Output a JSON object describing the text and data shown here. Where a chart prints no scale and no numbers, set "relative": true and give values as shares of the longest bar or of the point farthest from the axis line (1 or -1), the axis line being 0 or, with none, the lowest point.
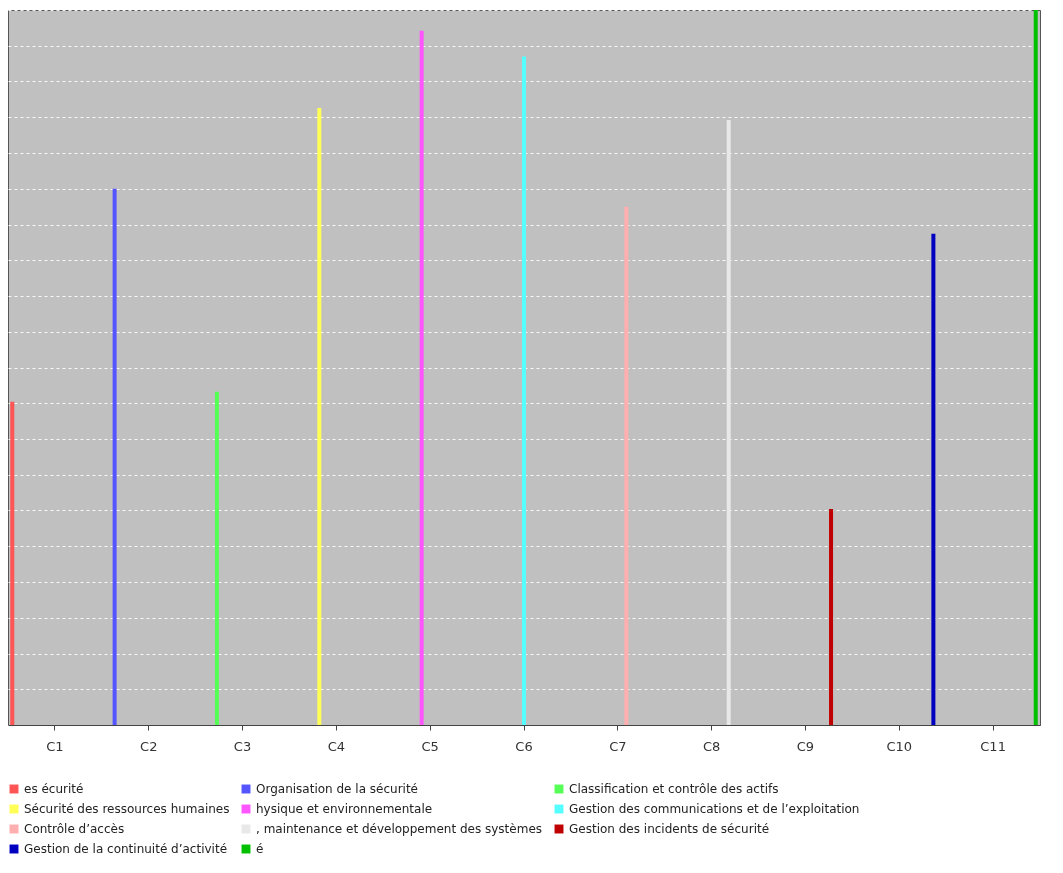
{
  "chart_data": {
    "type": "bar",
    "relative": true,
    "grid": "y",
    "legend": "bottom",
    "categories": [
      "C1",
      "C2",
      "C3",
      "C4",
      "C5",
      "C6",
      "C7",
      "C8",
      "C9",
      "C10",
      "C11"
    ],
    "series": [
      {
        "name": "es écurité",
        "color": "#ff5555",
        "values": [
          0.452,
          null,
          null,
          null,
          null,
          null,
          null,
          null,
          null,
          null,
          null
        ]
      },
      {
        "name": "Organisation de la sécurité",
        "color": "#5555ff",
        "values": [
          null,
          0.75,
          null,
          null,
          null,
          null,
          null,
          null,
          null,
          null,
          null
        ]
      },
      {
        "name": "Classification et contrôle des actifs",
        "color": "#55ff55",
        "values": [
          null,
          null,
          0.466,
          null,
          null,
          null,
          null,
          null,
          null,
          null,
          null
        ]
      },
      {
        "name": "Sécurité des ressources humaines",
        "color": "#ffff55",
        "values": [
          null,
          null,
          null,
          0.863,
          null,
          null,
          null,
          null,
          null,
          null,
          null
        ]
      },
      {
        "name": "hysique et environnementale",
        "color": "#ff55ff",
        "values": [
          null,
          null,
          null,
          null,
          0.971,
          null,
          null,
          null,
          null,
          null,
          null
        ]
      },
      {
        "name": "Gestion des communications et de l’exploitation",
        "color": "#55ffff",
        "values": [
          null,
          null,
          null,
          null,
          null,
          0.935,
          null,
          null,
          null,
          null,
          null
        ]
      },
      {
        "name": "Contrôle d’accès",
        "color": "#ffafaf",
        "values": [
          null,
          null,
          null,
          null,
          null,
          null,
          0.725,
          null,
          null,
          null,
          null
        ]
      },
      {
        "name": ", maintenance et développement des systèmes",
        "color": "#e8e8e8",
        "values": [
          null,
          null,
          null,
          null,
          null,
          null,
          null,
          0.846,
          null,
          null,
          null
        ]
      },
      {
        "name": "Gestion des incidents de sécurité",
        "color": "#c00000",
        "values": [
          null,
          null,
          null,
          null,
          null,
          null,
          null,
          null,
          0.302,
          null,
          null
        ]
      },
      {
        "name": "Gestion de la continuité d’activité",
        "color": "#0000c0",
        "values": [
          null,
          null,
          null,
          null,
          null,
          null,
          null,
          null,
          null,
          0.687,
          null
        ]
      },
      {
        "name": "é",
        "color": "#00c000",
        "values": [
          null,
          null,
          null,
          null,
          null,
          null,
          null,
          null,
          null,
          null,
          1
        ]
      }
    ]
  }
}
